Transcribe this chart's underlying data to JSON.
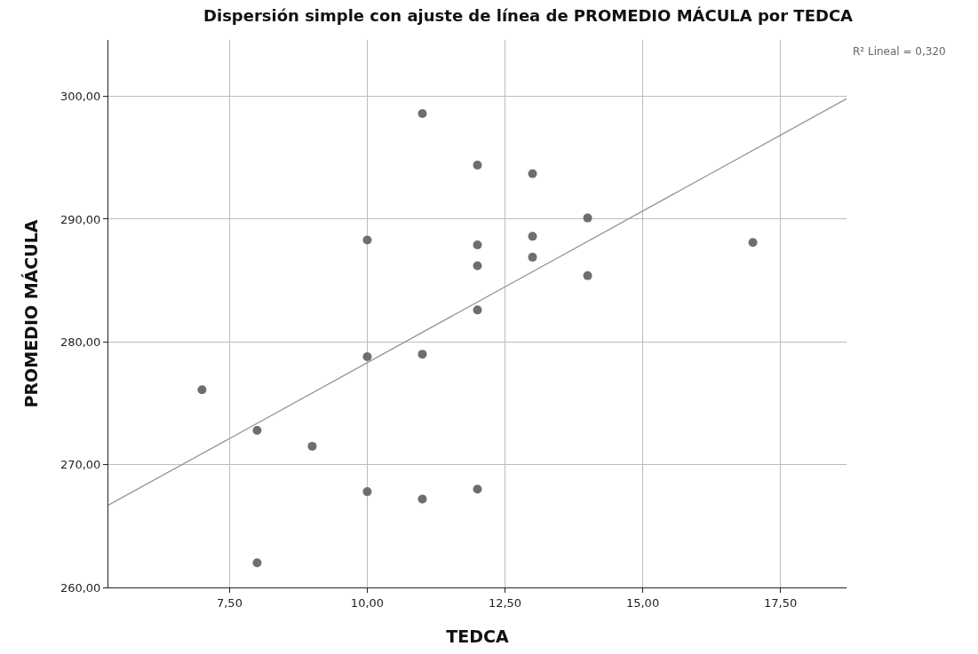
{
  "chart_data": {
    "type": "scatter",
    "title": "Dispersión simple con ajuste de línea de PROMEDIO MÁCULA por TEDCA",
    "xlabel": "TEDCA",
    "ylabel": "PROMEDIO MÁCULA",
    "annotations": [
      "R² Lineal = 0,320"
    ],
    "series": [
      {
        "color": "#6e6e6e",
        "marker": "circle",
        "x": [
          7,
          8,
          8,
          9,
          10,
          10,
          10,
          11,
          11,
          11,
          12,
          12,
          12,
          12,
          12,
          13,
          13,
          13,
          14,
          14,
          17
        ],
        "values": [
          276.1,
          272.8,
          262.0,
          271.5,
          288.3,
          278.8,
          267.8,
          298.6,
          279.0,
          267.2,
          294.4,
          287.9,
          286.2,
          282.6,
          268.0,
          293.7,
          288.6,
          286.9,
          290.1,
          285.4,
          288.1
        ]
      },
      {
        "type": "line",
        "color": "#8c8c8c",
        "marker": "none",
        "x": [
          5.3,
          18.7
        ],
        "values": [
          266.7,
          299.8
        ]
      }
    ],
    "xlim": [
      5.3,
      18.7
    ],
    "ylim": [
      260,
      304.6
    ],
    "xticks": [
      {
        "value": 7.5,
        "label": "7,50"
      },
      {
        "value": 10,
        "label": "10,00"
      },
      {
        "value": 12.5,
        "label": "12,50"
      },
      {
        "value": 15,
        "label": "15,00"
      },
      {
        "value": 17.5,
        "label": "17,50"
      }
    ],
    "yticks": [
      {
        "value": 260,
        "label": "260,00"
      },
      {
        "value": 270,
        "label": "270,00"
      },
      {
        "value": 280,
        "label": "280,00"
      },
      {
        "value": 290,
        "label": "290,00"
      },
      {
        "value": 300,
        "label": "300,00"
      }
    ],
    "grid": true
  }
}
